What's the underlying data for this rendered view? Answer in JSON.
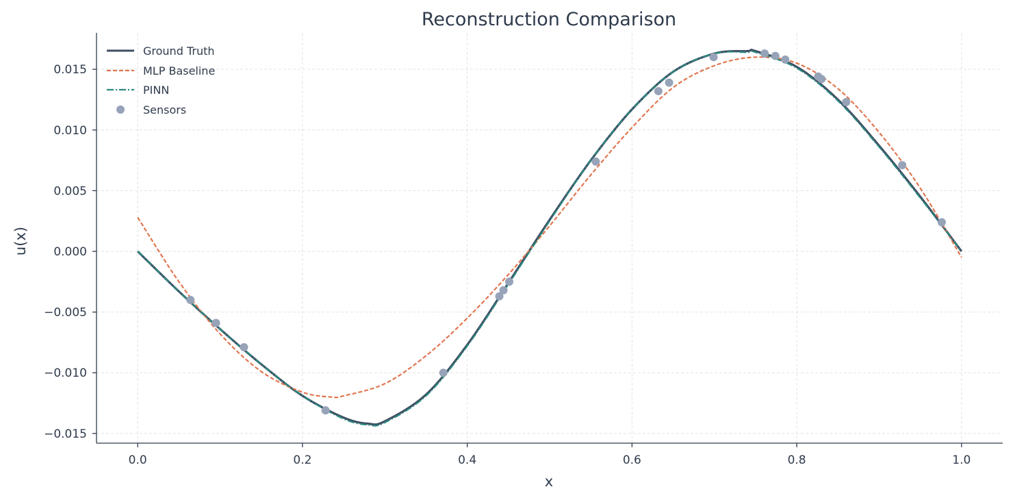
{
  "chart_data": {
    "type": "line",
    "title": "Reconstruction Comparison",
    "xlabel": "x",
    "ylabel": "u(x)",
    "xlim": [
      -0.05,
      1.05
    ],
    "ylim": [
      -0.0158,
      0.018
    ],
    "xticks": [
      0.0,
      0.2,
      0.4,
      0.6,
      0.8,
      1.0
    ],
    "xtick_labels": [
      "0.0",
      "0.2",
      "0.4",
      "0.6",
      "0.8",
      "1.0"
    ],
    "yticks": [
      -0.015,
      -0.01,
      -0.005,
      0.0,
      0.005,
      0.01,
      0.015
    ],
    "ytick_labels": [
      "−0.015",
      "−0.010",
      "−0.005",
      "0.000",
      "0.005",
      "0.010",
      "0.015"
    ],
    "grid": true,
    "legend_position": "top-left",
    "series": [
      {
        "name": "Ground Truth",
        "style": "solid",
        "color": "#3f4d62",
        "x": [
          0.0,
          0.05,
          0.1,
          0.15,
          0.2,
          0.25,
          0.28,
          0.3,
          0.35,
          0.4,
          0.45,
          0.5,
          0.55,
          0.6,
          0.65,
          0.7,
          0.74,
          0.75,
          0.8,
          0.85,
          0.9,
          0.95,
          1.0
        ],
        "y": [
          0.0,
          -0.0033,
          -0.0064,
          -0.0093,
          -0.0119,
          -0.0137,
          -0.0142,
          -0.014,
          -0.0118,
          -0.0077,
          -0.0026,
          0.0026,
          0.0075,
          0.0117,
          0.0148,
          0.0163,
          0.0165,
          0.0165,
          0.0152,
          0.0125,
          0.0087,
          0.0045,
          0.0
        ]
      },
      {
        "name": "MLP Baseline",
        "style": "dashed",
        "color": "#e07650",
        "x": [
          0.0,
          0.05,
          0.1,
          0.15,
          0.2,
          0.235,
          0.25,
          0.3,
          0.35,
          0.4,
          0.45,
          0.5,
          0.55,
          0.6,
          0.65,
          0.7,
          0.75,
          0.8,
          0.85,
          0.9,
          0.95,
          1.0
        ],
        "y": [
          0.0028,
          -0.0025,
          -0.0068,
          -0.0099,
          -0.0116,
          -0.012,
          -0.0119,
          -0.0109,
          -0.0086,
          -0.0055,
          -0.0019,
          0.0021,
          0.0063,
          0.0102,
          0.0135,
          0.0153,
          0.016,
          0.0155,
          0.0134,
          0.0098,
          0.0052,
          -0.0005
        ]
      },
      {
        "name": "PINN",
        "style": "dashdot",
        "color": "#2b8a80",
        "x": [
          0.0,
          0.05,
          0.1,
          0.15,
          0.2,
          0.25,
          0.28,
          0.3,
          0.35,
          0.4,
          0.45,
          0.5,
          0.55,
          0.6,
          0.65,
          0.7,
          0.74,
          0.75,
          0.8,
          0.85,
          0.9,
          0.95,
          1.0
        ],
        "y": [
          0.0,
          -0.0033,
          -0.0064,
          -0.0093,
          -0.0119,
          -0.0138,
          -0.0143,
          -0.0141,
          -0.0119,
          -0.0078,
          -0.0027,
          0.0025,
          0.0075,
          0.0117,
          0.0148,
          0.0163,
          0.0164,
          0.0164,
          0.0151,
          0.0124,
          0.0086,
          0.0044,
          0.0
        ]
      }
    ],
    "scatter": {
      "name": "Sensors",
      "color": "#97a3b8",
      "x": [
        0.064,
        0.095,
        0.129,
        0.228,
        0.371,
        0.439,
        0.444,
        0.451,
        0.556,
        0.632,
        0.645,
        0.699,
        0.761,
        0.774,
        0.786,
        0.826,
        0.83,
        0.86,
        0.928,
        0.976
      ],
      "y": [
        -0.004,
        -0.0059,
        -0.0079,
        -0.0131,
        -0.01,
        -0.0037,
        -0.0032,
        -0.0025,
        0.0074,
        0.0132,
        0.0139,
        0.016,
        0.0163,
        0.0161,
        0.0158,
        0.0144,
        0.0142,
        0.0123,
        0.0071,
        0.0024
      ]
    }
  }
}
